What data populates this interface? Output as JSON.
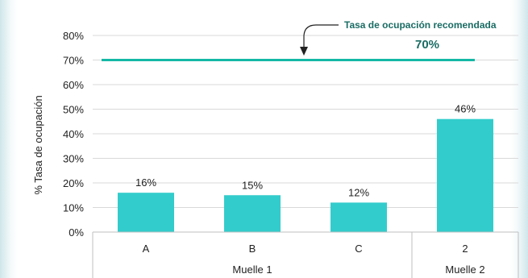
{
  "chart_data": {
    "type": "bar",
    "ylabel": "% Tasa de ocupación",
    "ylim": [
      0,
      80
    ],
    "yticks": [
      "0%",
      "10%",
      "20%",
      "30%",
      "40%",
      "50%",
      "60%",
      "70%",
      "80%"
    ],
    "categories": [
      "A",
      "B",
      "C",
      "2"
    ],
    "groups": [
      {
        "label": "Muelle 1",
        "categories": [
          "A",
          "B",
          "C"
        ]
      },
      {
        "label": "Muelle 2",
        "categories": [
          "2"
        ]
      }
    ],
    "values": [
      16,
      15,
      12,
      46
    ],
    "data_labels": [
      "16%",
      "15%",
      "12%",
      "46%"
    ],
    "reference_line": {
      "value": 70,
      "label": "Tasa de ocupación  recomendada",
      "value_label": "70%"
    },
    "grid": true,
    "bar_color": "#33cccc",
    "line_color": "#14b8a6"
  }
}
